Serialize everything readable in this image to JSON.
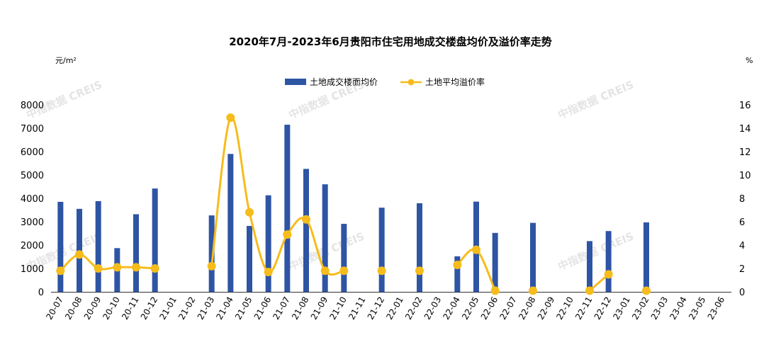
{
  "chart_data": {
    "type": "bar+line",
    "title": "2020年7月-2023年6月贵阳市住宅用地成交楼盘均价及溢价率走势",
    "left_axis_unit": "元/m²",
    "right_axis_unit": "%",
    "watermark": "中指数据 CREIS",
    "left_ylim": [
      0,
      8000
    ],
    "left_yticks": [
      "0",
      "1000",
      "2000",
      "3000",
      "4000",
      "5000",
      "6000",
      "7000",
      "8000"
    ],
    "right_ylim": [
      0,
      16
    ],
    "right_yticks": [
      "0",
      "2",
      "4",
      "6",
      "8",
      "10",
      "12",
      "14",
      "16"
    ],
    "legend_position": "top-center",
    "categories": [
      "20-07",
      "20-08",
      "20-09",
      "20-10",
      "20-11",
      "20-12",
      "21-01",
      "21-02",
      "21-03",
      "21-04",
      "21-05",
      "21-06",
      "21-07",
      "21-08",
      "21-09",
      "21-10",
      "21-11",
      "21-12",
      "22-01",
      "22-02",
      "22-03",
      "22-04",
      "22-05",
      "22-06",
      "22-07",
      "22-08",
      "22-09",
      "22-10",
      "22-11",
      "22-12",
      "23-01",
      "23-02",
      "23-03",
      "23-04",
      "23-05",
      "23-06"
    ],
    "series": [
      {
        "name": "土地成交楼面均价",
        "type": "bar",
        "axis": "left",
        "color": "#2e54a4",
        "values": [
          3850,
          3550,
          3880,
          1870,
          3320,
          4420,
          null,
          null,
          3270,
          5900,
          2820,
          4130,
          7150,
          5260,
          4600,
          2910,
          null,
          3600,
          null,
          3790,
          null,
          1520,
          3860,
          2520,
          null,
          2950,
          null,
          null,
          2170,
          2600,
          null,
          2970,
          null,
          null,
          null,
          null
        ]
      },
      {
        "name": "土地平均溢价率",
        "type": "line",
        "axis": "right",
        "color": "#f6bc1b",
        "values": [
          1.8,
          3.2,
          2.0,
          2.1,
          2.1,
          2.0,
          null,
          null,
          2.2,
          14.9,
          6.8,
          1.7,
          4.9,
          6.2,
          1.8,
          1.8,
          null,
          1.8,
          null,
          1.8,
          null,
          2.3,
          3.6,
          0.1,
          null,
          0.1,
          null,
          null,
          0.1,
          1.5,
          null,
          0.1,
          null,
          null,
          null,
          null
        ]
      }
    ]
  }
}
